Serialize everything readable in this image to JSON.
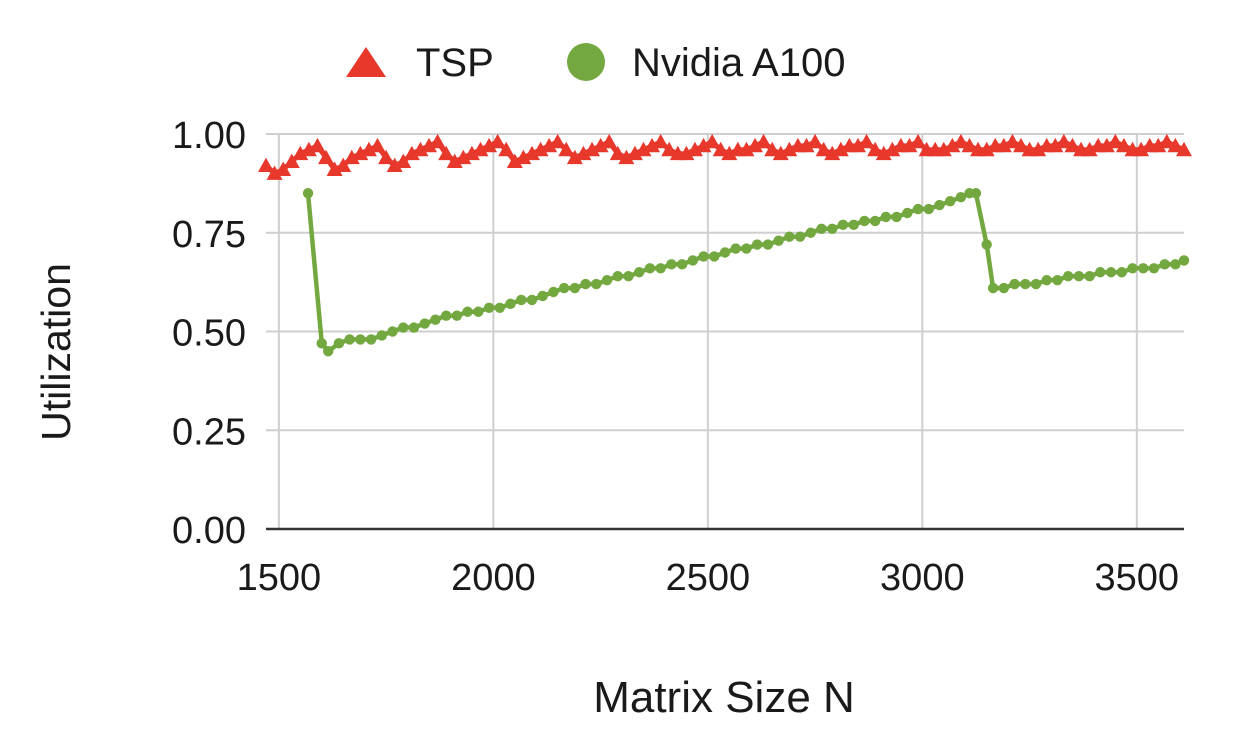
{
  "chart_data": {
    "type": "line",
    "title": "",
    "xlabel": "Matrix Size N",
    "ylabel": "Utilization",
    "xlim": [
      1470,
      3610
    ],
    "ylim": [
      0,
      1
    ],
    "xticks": [
      1500,
      2000,
      2500,
      3000,
      3500
    ],
    "xtick_labels": [
      "1500",
      "2000",
      "2500",
      "3000",
      "3500"
    ],
    "yticks": [
      0,
      0.25,
      0.5,
      0.75,
      1
    ],
    "ytick_labels": [
      "0.00",
      "0.25",
      "0.50",
      "0.75",
      "1.00"
    ],
    "grid": true,
    "legend_position": "top-center",
    "series": [
      {
        "name": "TSP",
        "marker": "triangle",
        "color": "#e8382c",
        "x": [
          1470,
          1490,
          1510,
          1530,
          1550,
          1570,
          1590,
          1610,
          1630,
          1650,
          1670,
          1690,
          1710,
          1730,
          1750,
          1770,
          1790,
          1810,
          1830,
          1850,
          1870,
          1890,
          1910,
          1930,
          1950,
          1970,
          1990,
          2010,
          2030,
          2050,
          2070,
          2090,
          2110,
          2130,
          2150,
          2170,
          2190,
          2210,
          2230,
          2250,
          2270,
          2290,
          2310,
          2330,
          2350,
          2370,
          2390,
          2410,
          2430,
          2450,
          2470,
          2490,
          2510,
          2530,
          2550,
          2570,
          2590,
          2610,
          2630,
          2650,
          2670,
          2690,
          2710,
          2730,
          2750,
          2770,
          2790,
          2810,
          2830,
          2850,
          2870,
          2890,
          2910,
          2930,
          2950,
          2970,
          2990,
          3010,
          3030,
          3050,
          3070,
          3090,
          3110,
          3130,
          3150,
          3170,
          3190,
          3210,
          3230,
          3250,
          3270,
          3290,
          3310,
          3330,
          3350,
          3370,
          3390,
          3410,
          3430,
          3450,
          3470,
          3490,
          3510,
          3530,
          3550,
          3570,
          3590,
          3610
        ],
        "y": [
          0.92,
          0.9,
          0.91,
          0.93,
          0.95,
          0.96,
          0.97,
          0.94,
          0.91,
          0.92,
          0.94,
          0.95,
          0.96,
          0.97,
          0.94,
          0.92,
          0.93,
          0.95,
          0.96,
          0.97,
          0.98,
          0.95,
          0.93,
          0.94,
          0.95,
          0.96,
          0.97,
          0.98,
          0.96,
          0.93,
          0.94,
          0.95,
          0.96,
          0.97,
          0.98,
          0.96,
          0.94,
          0.95,
          0.96,
          0.97,
          0.98,
          0.95,
          0.94,
          0.95,
          0.96,
          0.97,
          0.98,
          0.96,
          0.95,
          0.95,
          0.96,
          0.97,
          0.98,
          0.96,
          0.95,
          0.96,
          0.96,
          0.97,
          0.98,
          0.96,
          0.95,
          0.96,
          0.97,
          0.97,
          0.98,
          0.96,
          0.95,
          0.96,
          0.97,
          0.97,
          0.98,
          0.96,
          0.95,
          0.96,
          0.97,
          0.97,
          0.98,
          0.96,
          0.96,
          0.96,
          0.97,
          0.98,
          0.97,
          0.96,
          0.96,
          0.97,
          0.97,
          0.98,
          0.97,
          0.96,
          0.96,
          0.97,
          0.97,
          0.98,
          0.97,
          0.96,
          0.96,
          0.97,
          0.97,
          0.98,
          0.97,
          0.96,
          0.96,
          0.97,
          0.97,
          0.98,
          0.97,
          0.96
        ]
      },
      {
        "name": "Nvidia A100",
        "marker": "circle",
        "color": "#72a83f",
        "x": [
          1568,
          1600,
          1615,
          1640,
          1665,
          1690,
          1715,
          1740,
          1765,
          1790,
          1815,
          1840,
          1865,
          1890,
          1915,
          1940,
          1965,
          1990,
          2015,
          2040,
          2065,
          2090,
          2115,
          2140,
          2165,
          2190,
          2215,
          2240,
          2265,
          2290,
          2315,
          2340,
          2365,
          2390,
          2415,
          2440,
          2465,
          2490,
          2515,
          2540,
          2565,
          2590,
          2615,
          2640,
          2665,
          2690,
          2715,
          2740,
          2765,
          2790,
          2815,
          2840,
          2865,
          2890,
          2915,
          2940,
          2965,
          2990,
          3015,
          3040,
          3065,
          3090,
          3110,
          3125,
          3150,
          3165,
          3190,
          3215,
          3240,
          3265,
          3290,
          3315,
          3340,
          3365,
          3390,
          3415,
          3440,
          3465,
          3490,
          3515,
          3540,
          3565,
          3590,
          3610
        ],
        "y": [
          0.85,
          0.47,
          0.45,
          0.47,
          0.48,
          0.48,
          0.48,
          0.49,
          0.5,
          0.51,
          0.51,
          0.52,
          0.53,
          0.54,
          0.54,
          0.55,
          0.55,
          0.56,
          0.56,
          0.57,
          0.58,
          0.58,
          0.59,
          0.6,
          0.61,
          0.61,
          0.62,
          0.62,
          0.63,
          0.64,
          0.64,
          0.65,
          0.66,
          0.66,
          0.67,
          0.67,
          0.68,
          0.69,
          0.69,
          0.7,
          0.71,
          0.71,
          0.72,
          0.72,
          0.73,
          0.74,
          0.74,
          0.75,
          0.76,
          0.76,
          0.77,
          0.77,
          0.78,
          0.78,
          0.79,
          0.79,
          0.8,
          0.81,
          0.81,
          0.82,
          0.83,
          0.84,
          0.85,
          0.85,
          0.72,
          0.61,
          0.61,
          0.62,
          0.62,
          0.62,
          0.63,
          0.63,
          0.64,
          0.64,
          0.64,
          0.65,
          0.65,
          0.65,
          0.66,
          0.66,
          0.66,
          0.67,
          0.67,
          0.68
        ]
      }
    ]
  }
}
